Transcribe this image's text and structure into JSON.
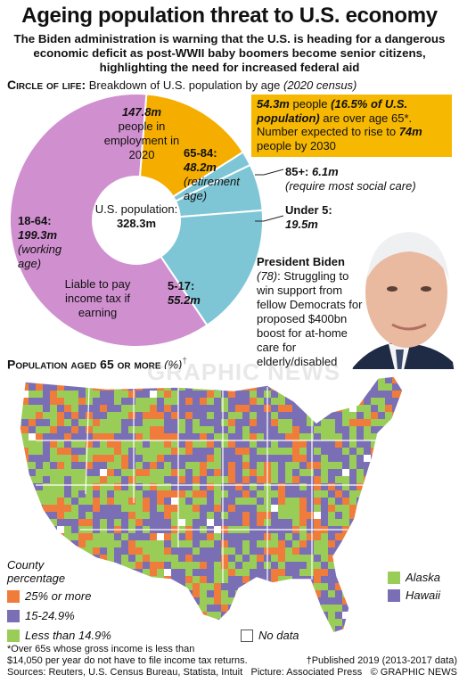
{
  "header": {
    "title": "Ageing population threat to U.S. economy",
    "subtitle": "The Biden administration is warning that the U.S. is heading for a dangerous economic deficit as post-WWII baby boomers become senior citizens, highlighting the need for increased federal aid"
  },
  "circle_section": {
    "heading_caps": "Circle of life:",
    "heading_text": "Breakdown of U.S. population by age",
    "heading_note": "(2020 census)"
  },
  "donut": {
    "center_label": "U.S. population:",
    "center_value": "328.3m",
    "employment_value": "147.8m",
    "employment_text": "people in employment in 2020",
    "taxable_text": "Liable to pay income tax if earning"
  },
  "note_box": {
    "value_1": "54.3m",
    "text_1": "people",
    "value_2": "(16.5% of U.S. population)",
    "text_2": "are over age 65*. Number expected to rise to",
    "value_3": "74m",
    "text_3": "people by 2030"
  },
  "callouts": {
    "over85_label": "85+:",
    "over85_value": "6.1m",
    "over85_note": "(require most social care)",
    "under5_label": "Under 5:",
    "under5_value": "19.5m"
  },
  "biden": {
    "name": "President Biden",
    "age": "(78)",
    "text": "Struggling to win support from fellow Democrats for proposed $400bn boost for at-home care for elderly/disabled"
  },
  "map_section": {
    "heading_caps": "Population aged 65 or more",
    "heading_unit": "(%)",
    "heading_dagger": "†"
  },
  "map_legend": {
    "title_1": "County",
    "title_2": "percentage",
    "item_high": "25% or more",
    "item_mid": "15-24.9%",
    "item_low": "Less than 14.9%",
    "no_data": "No data",
    "alaska": "Alaska",
    "hawaii": "Hawaii"
  },
  "footer": {
    "note_1": "*Over 65s whose gross income is less than",
    "note_2": "$14,050 per year do not have to file income tax returns.",
    "note_2b": "†Published 2019 (2013-2017 data)",
    "sources": "Sources: Reuters, U.S. Census Bureau, Statista, Intuit",
    "picture": "Picture: Associated Press",
    "credit": "© GRAPHIC NEWS"
  },
  "watermark": "GRAPHIC NEWS",
  "colors": {
    "purple": "#d08fcf",
    "orange": "#f5ae00",
    "blue": "#7ec6d6",
    "map_high": "#f07c3c",
    "map_mid": "#7a6fb5",
    "map_low": "#9acd57"
  },
  "chart_data": [
    {
      "type": "pie",
      "title": "Breakdown of U.S. population by age",
      "total": 328.3,
      "unit": "m",
      "slices": [
        {
          "label": "18-64",
          "value": 199.3,
          "note": "(working age)",
          "color": "#d08fcf"
        },
        {
          "label": "65-84",
          "value": 48.2,
          "note": "(retirement age)",
          "color": "#f5ae00"
        },
        {
          "label": "85+",
          "value": 6.1,
          "color": "#7ec6d6"
        },
        {
          "label": "Under 5",
          "value": 19.5,
          "color": "#7ec6d6"
        },
        {
          "label": "5-17",
          "value": 55.2,
          "color": "#7ec6d6"
        }
      ]
    },
    {
      "type": "heatmap",
      "title": "Population aged 65 or more (%)",
      "categories": [
        "25% or more",
        "15-24.9%",
        "Less than 14.9%",
        "No data"
      ],
      "colors": [
        "#f07c3c",
        "#7a6fb5",
        "#9acd57",
        "#ffffff"
      ]
    }
  ]
}
